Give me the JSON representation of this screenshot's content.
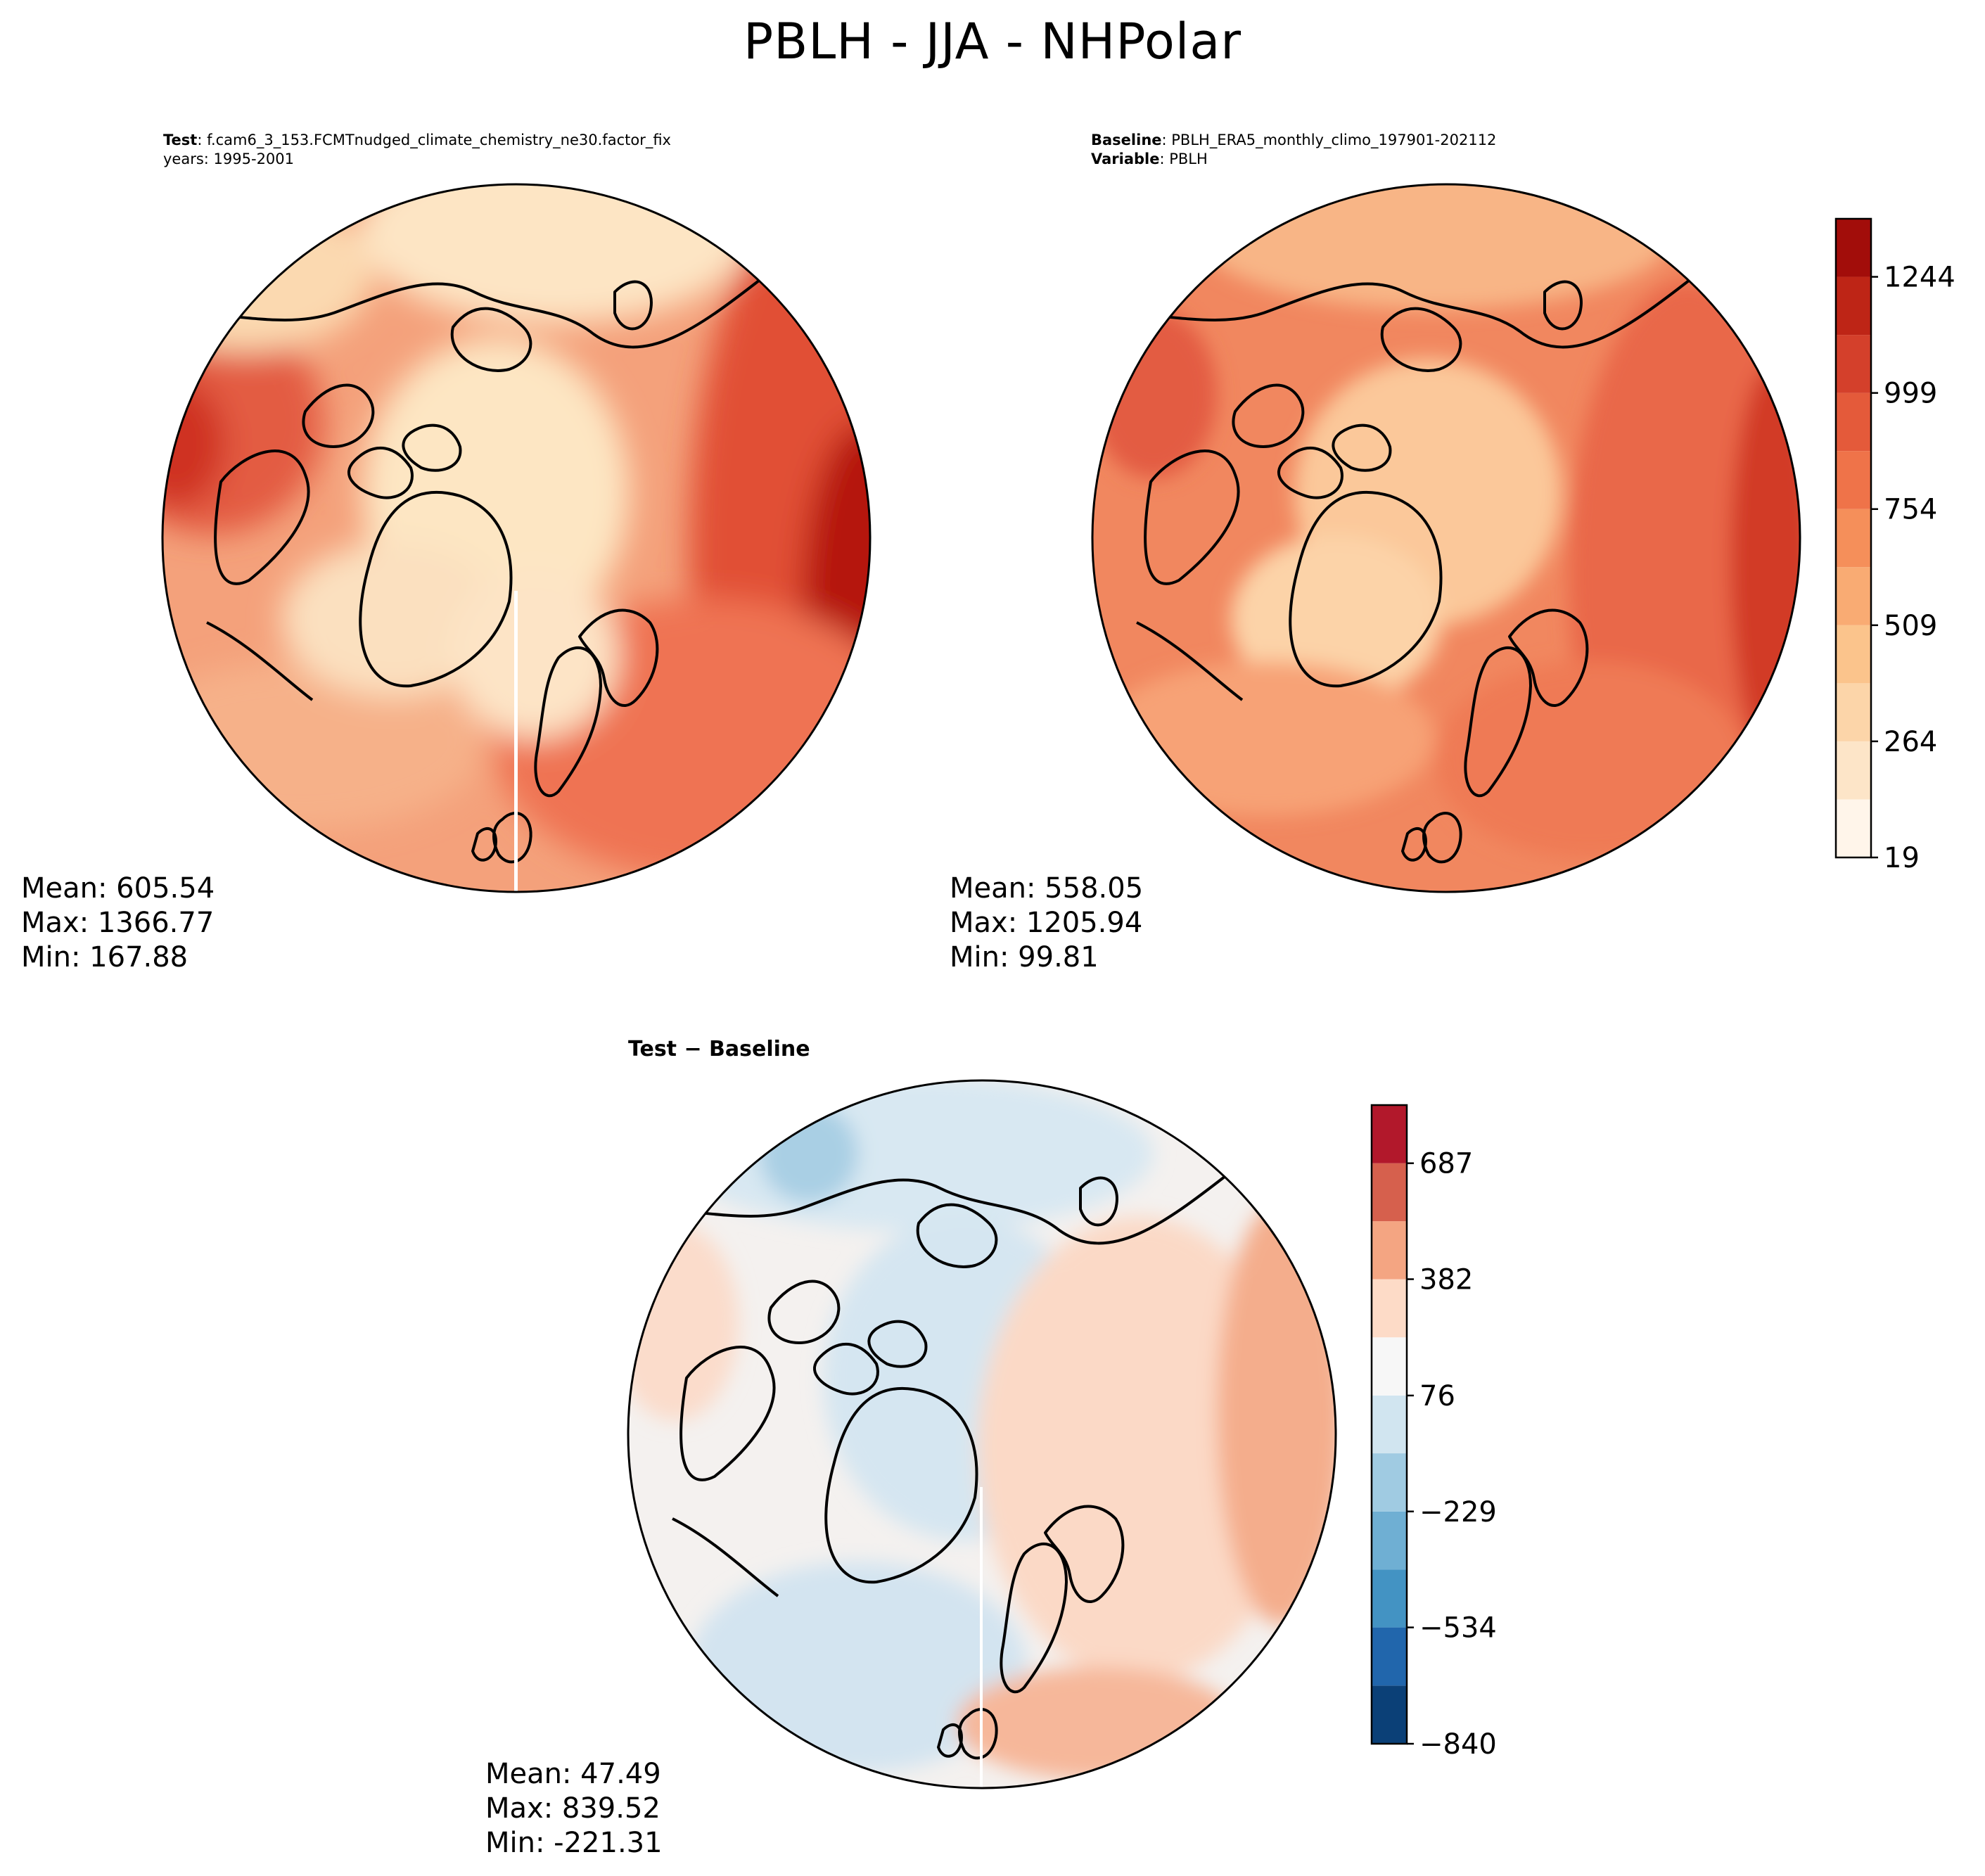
{
  "figure": {
    "title": "PBLH - JJA - NHPolar"
  },
  "chart_data": [
    {
      "type": "heatmap",
      "projection": "north-polar-stereographic",
      "name": "test",
      "header": {
        "label_bold": "Test",
        "label_text": ": f.cam6_3_153.FCMTnudged_climate_chemistry_ne30.factor_fix",
        "line2": "years: 1995-2001"
      },
      "stats": {
        "mean": "Mean: 605.54",
        "max": "Max: 1366.77",
        "min": "Min: 167.88"
      },
      "colormap": "OrRd-like"
    },
    {
      "type": "heatmap",
      "projection": "north-polar-stereographic",
      "name": "baseline",
      "header": {
        "label_bold": "Baseline",
        "label_text": ": PBLH_ERA5_monthly_climo_197901-202112",
        "line2_bold": "Variable",
        "line2_text": ": PBLH"
      },
      "stats": {
        "mean": "Mean: 558.05",
        "max": "Max: 1205.94",
        "min": "Min: 99.81"
      },
      "colorbar": {
        "levels": [
          19,
          141.5,
          264,
          386.5,
          509,
          631.5,
          754,
          876.5,
          999,
          1121.5,
          1244,
          1366.5
        ],
        "tick_values": [
          19,
          264,
          509,
          754,
          999,
          1244
        ],
        "tick_labels": [
          "19",
          "264",
          "509",
          "754",
          "999",
          "1244"
        ],
        "colors": [
          "#fff5ea",
          "#fde5c8",
          "#fcd5a9",
          "#fbc48c",
          "#f9ab73",
          "#f58f5a",
          "#ef7349",
          "#e45a3a",
          "#d4402b",
          "#be2516",
          "#a20d0a",
          "#7f0000"
        ]
      }
    },
    {
      "type": "heatmap",
      "projection": "north-polar-stereographic",
      "name": "difference",
      "title": "Test − Baseline",
      "stats": {
        "mean": "Mean: 47.49",
        "max": "Max: 839.52",
        "min": "Min: -221.31"
      },
      "colorbar": {
        "levels": [
          -840,
          -687,
          -534,
          -381.5,
          -229,
          -76,
          76,
          229,
          382,
          534.5,
          687,
          840
        ],
        "tick_values": [
          -840,
          -534,
          -229,
          76,
          382,
          687
        ],
        "tick_labels": [
          "−840",
          "−534",
          "−229",
          "76",
          "382",
          "687"
        ],
        "colors": [
          "#0b4077",
          "#2166ac",
          "#4393c3",
          "#6fafd3",
          "#a0cbe2",
          "#d1e5f0",
          "#f7f7f7",
          "#fddbc7",
          "#f4a582",
          "#d6604d",
          "#b2182b",
          "#820a22"
        ]
      }
    }
  ],
  "colors": {
    "test_land_palette": [
      "#fde6c3",
      "#fcd4a6",
      "#f9b98a",
      "#f19067",
      "#e35c42",
      "#cf3320",
      "#a10e0a"
    ],
    "diff_palette": [
      "#d1e5f0",
      "#f7f7f7",
      "#fddbc7",
      "#f4a582",
      "#a0cbe2"
    ],
    "coastline": "#000000"
  }
}
